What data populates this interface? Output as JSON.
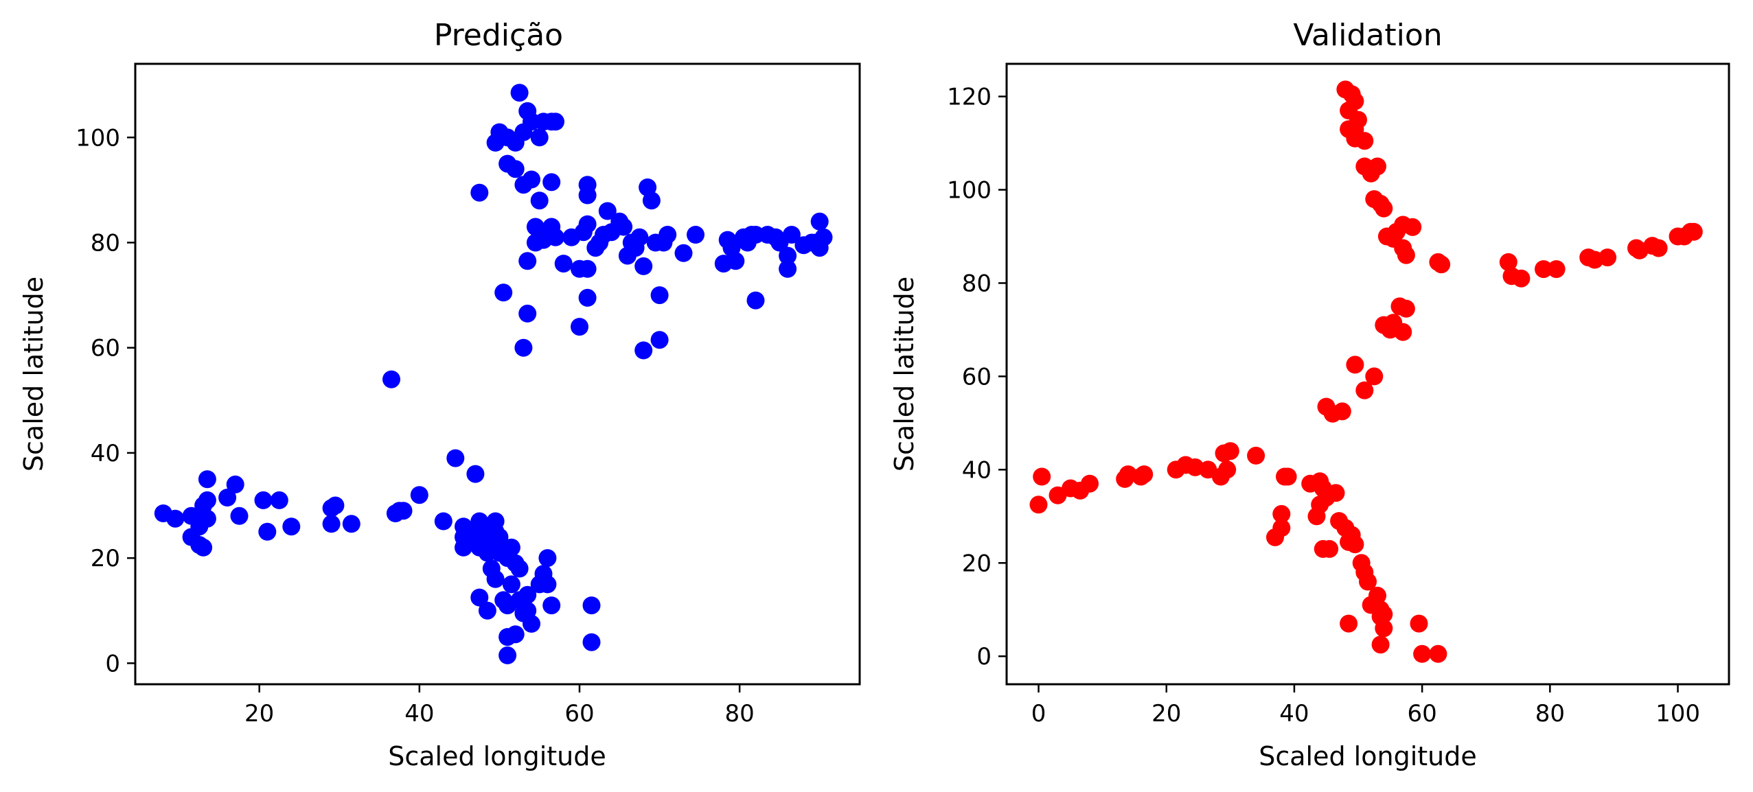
{
  "chart_data": [
    {
      "type": "scatter",
      "title": "Predição",
      "xlabel": "Scaled longitude",
      "ylabel": "Scaled latitude",
      "xlim": [
        4.5,
        95.0
      ],
      "ylim": [
        -4.0,
        114.0
      ],
      "xticks": [
        20,
        40,
        60,
        80
      ],
      "yticks": [
        0,
        20,
        40,
        60,
        80,
        100
      ],
      "grid": false,
      "color": "#0000ff",
      "points": [
        [
          8,
          28.5
        ],
        [
          9.5,
          27.5
        ],
        [
          11.5,
          28
        ],
        [
          12.5,
          26
        ],
        [
          11.5,
          24
        ],
        [
          12.5,
          22.5
        ],
        [
          13,
          22
        ],
        [
          13.5,
          27.5
        ],
        [
          13,
          30
        ],
        [
          13.5,
          31
        ],
        [
          13.5,
          35
        ],
        [
          16,
          31.5
        ],
        [
          17,
          34
        ],
        [
          17.5,
          28
        ],
        [
          20.5,
          31
        ],
        [
          21,
          25
        ],
        [
          22.5,
          31
        ],
        [
          24,
          26
        ],
        [
          29,
          26.5
        ],
        [
          29,
          29.5
        ],
        [
          29.5,
          30
        ],
        [
          31.5,
          26.5
        ],
        [
          36.5,
          54
        ],
        [
          37,
          28.5
        ],
        [
          37.5,
          29
        ],
        [
          38,
          29
        ],
        [
          40,
          32
        ],
        [
          43,
          27
        ],
        [
          44.5,
          39
        ],
        [
          45.5,
          26
        ],
        [
          45.5,
          24
        ],
        [
          45.5,
          22
        ],
        [
          46.5,
          25
        ],
        [
          46.5,
          23
        ],
        [
          47,
          36
        ],
        [
          47.5,
          27
        ],
        [
          47.5,
          25
        ],
        [
          47.5,
          22
        ],
        [
          48,
          24
        ],
        [
          48.5,
          21
        ],
        [
          48.5,
          26
        ],
        [
          49,
          23
        ],
        [
          49.5,
          27
        ],
        [
          49.5,
          25
        ],
        [
          50,
          24
        ],
        [
          50.5,
          22
        ],
        [
          50,
          21
        ],
        [
          51,
          20
        ],
        [
          51.5,
          22
        ],
        [
          52,
          19
        ],
        [
          52.5,
          18
        ],
        [
          49,
          18
        ],
        [
          49.5,
          16
        ],
        [
          47.5,
          12.5
        ],
        [
          48.5,
          10
        ],
        [
          50.5,
          12
        ],
        [
          51.5,
          15
        ],
        [
          51,
          11
        ],
        [
          52.5,
          12
        ],
        [
          53,
          9.5
        ],
        [
          53.5,
          10
        ],
        [
          53.5,
          13
        ],
        [
          54,
          7.5
        ],
        [
          55,
          15
        ],
        [
          55.5,
          17
        ],
        [
          56,
          20
        ],
        [
          56,
          15
        ],
        [
          56.5,
          11
        ],
        [
          51,
          1.5
        ],
        [
          51,
          5
        ],
        [
          52,
          5.5
        ],
        [
          61.5,
          11
        ],
        [
          61.5,
          4
        ],
        [
          49.5,
          99
        ],
        [
          50,
          101
        ],
        [
          51,
          100
        ],
        [
          52,
          99
        ],
        [
          52.5,
          108.5
        ],
        [
          53,
          101
        ],
        [
          53.5,
          105
        ],
        [
          54,
          103
        ],
        [
          55,
          100
        ],
        [
          51,
          95
        ],
        [
          52,
          94
        ],
        [
          53,
          91
        ],
        [
          54,
          92
        ],
        [
          55.5,
          103
        ],
        [
          56.5,
          103
        ],
        [
          57,
          103
        ],
        [
          55,
          88
        ],
        [
          56.5,
          91.5
        ],
        [
          47.5,
          89.5
        ],
        [
          50.5,
          70.5
        ],
        [
          53.5,
          76.5
        ],
        [
          53.5,
          66.5
        ],
        [
          53,
          60
        ],
        [
          54.5,
          80
        ],
        [
          54.5,
          83
        ],
        [
          55.5,
          80.5
        ],
        [
          56,
          82
        ],
        [
          57,
          81
        ],
        [
          56.5,
          83
        ],
        [
          58,
          76
        ],
        [
          59,
          81
        ],
        [
          60,
          75
        ],
        [
          60.5,
          82
        ],
        [
          61,
          83.5
        ],
        [
          61,
          89
        ],
        [
          61,
          91
        ],
        [
          61,
          75
        ],
        [
          61,
          69.5
        ],
        [
          60,
          64
        ],
        [
          62,
          79
        ],
        [
          62.5,
          80
        ],
        [
          63,
          81.5
        ],
        [
          63.5,
          86
        ],
        [
          64,
          82
        ],
        [
          65,
          84
        ],
        [
          65.5,
          83
        ],
        [
          66,
          77.5
        ],
        [
          66.5,
          80
        ],
        [
          67,
          80
        ],
        [
          67,
          79
        ],
        [
          67.5,
          81
        ],
        [
          68,
          75.5
        ],
        [
          68,
          59.5
        ],
        [
          68.5,
          90.5
        ],
        [
          69,
          88
        ],
        [
          69.5,
          80
        ],
        [
          70,
          61.5
        ],
        [
          70,
          70
        ],
        [
          70.5,
          80
        ],
        [
          71,
          81.5
        ],
        [
          73,
          78
        ],
        [
          74.5,
          81.5
        ],
        [
          78,
          76
        ],
        [
          78.5,
          80.5
        ],
        [
          79,
          79
        ],
        [
          79.5,
          76.5
        ],
        [
          80.5,
          81
        ],
        [
          81,
          80
        ],
        [
          81.5,
          81.5
        ],
        [
          82,
          69
        ],
        [
          82,
          81.5
        ],
        [
          83.5,
          81.5
        ],
        [
          84.5,
          81
        ],
        [
          85,
          80
        ],
        [
          86,
          77.5
        ],
        [
          86,
          75
        ],
        [
          86.5,
          81.5
        ],
        [
          88,
          79.5
        ],
        [
          89,
          80
        ],
        [
          89.5,
          80
        ],
        [
          90,
          84
        ],
        [
          90,
          79
        ],
        [
          90.5,
          81
        ]
      ]
    },
    {
      "type": "scatter",
      "title": "Validation",
      "xlabel": "Scaled longitude",
      "ylabel": "Scaled latitude",
      "xlim": [
        -5.0,
        108.0
      ],
      "ylim": [
        -6.0,
        127.0
      ],
      "xticks": [
        0,
        20,
        40,
        60,
        80,
        100
      ],
      "yticks": [
        0,
        20,
        40,
        60,
        80,
        100,
        120
      ],
      "grid": false,
      "color": "#ff0000",
      "points": [
        [
          0,
          32.5
        ],
        [
          0.5,
          38.5
        ],
        [
          3,
          34.5
        ],
        [
          5,
          36
        ],
        [
          6.5,
          35.5
        ],
        [
          8,
          37
        ],
        [
          13.5,
          38
        ],
        [
          14,
          39
        ],
        [
          16,
          38.5
        ],
        [
          16.5,
          39
        ],
        [
          21.5,
          40
        ],
        [
          23,
          41
        ],
        [
          24.5,
          40.5
        ],
        [
          26.5,
          40
        ],
        [
          28.5,
          38.5
        ],
        [
          29,
          43.5
        ],
        [
          29.5,
          40
        ],
        [
          30,
          44
        ],
        [
          34,
          43
        ],
        [
          37,
          25.5
        ],
        [
          38,
          27.5
        ],
        [
          38,
          30.5
        ],
        [
          38.5,
          38.5
        ],
        [
          39,
          38.5
        ],
        [
          42.5,
          37
        ],
        [
          43.5,
          30
        ],
        [
          44,
          32.5
        ],
        [
          44.5,
          36
        ],
        [
          44,
          37.5
        ],
        [
          45,
          34
        ],
        [
          44.5,
          23
        ],
        [
          45.5,
          23
        ],
        [
          46.5,
          35
        ],
        [
          45,
          53.5
        ],
        [
          46,
          52
        ],
        [
          47.5,
          52.5
        ],
        [
          47,
          29
        ],
        [
          48,
          27.5
        ],
        [
          48.5,
          24.5
        ],
        [
          49,
          26
        ],
        [
          49.5,
          24
        ],
        [
          48.5,
          7
        ],
        [
          49.5,
          62.5
        ],
        [
          51,
          57
        ],
        [
          52.5,
          60
        ],
        [
          50.5,
          20
        ],
        [
          51,
          18
        ],
        [
          51.5,
          16
        ],
        [
          52,
          11
        ],
        [
          53,
          13
        ],
        [
          53.5,
          10
        ],
        [
          53.5,
          8.5
        ],
        [
          54,
          6
        ],
        [
          54,
          9
        ],
        [
          53.5,
          2.5
        ],
        [
          54,
          71
        ],
        [
          55,
          70
        ],
        [
          55.5,
          71.5
        ],
        [
          56.5,
          75
        ],
        [
          57.5,
          74.5
        ],
        [
          57,
          69.5
        ],
        [
          48,
          121.5
        ],
        [
          49,
          120.5
        ],
        [
          49.5,
          119
        ],
        [
          48.5,
          117
        ],
        [
          49.5,
          113
        ],
        [
          50,
          115
        ],
        [
          48.5,
          113
        ],
        [
          49.5,
          111
        ],
        [
          51,
          110.5
        ],
        [
          51,
          105
        ],
        [
          52,
          103.5
        ],
        [
          53,
          105
        ],
        [
          52.5,
          98
        ],
        [
          53.5,
          97
        ],
        [
          54,
          96
        ],
        [
          54.5,
          90
        ],
        [
          55.5,
          89.5
        ],
        [
          56,
          91
        ],
        [
          57,
          92.5
        ],
        [
          58.5,
          92
        ],
        [
          57,
          87.5
        ],
        [
          57.5,
          86
        ],
        [
          62.5,
          84.5
        ],
        [
          63,
          84
        ],
        [
          59.5,
          7
        ],
        [
          60,
          0.5
        ],
        [
          62.5,
          0.5
        ],
        [
          73.5,
          84.5
        ],
        [
          74,
          81.5
        ],
        [
          75.5,
          81
        ],
        [
          79,
          83
        ],
        [
          81,
          83
        ],
        [
          86,
          85.5
        ],
        [
          87,
          85
        ],
        [
          89,
          85.5
        ],
        [
          93.5,
          87.5
        ],
        [
          94,
          87
        ],
        [
          96,
          88
        ],
        [
          97,
          87.5
        ],
        [
          100,
          90
        ],
        [
          101,
          90
        ],
        [
          102,
          91
        ],
        [
          102.5,
          91
        ]
      ]
    }
  ]
}
